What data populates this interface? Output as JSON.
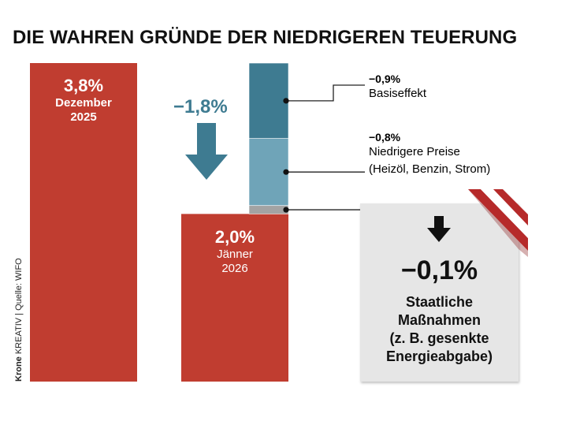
{
  "title": "DIE WAHREN GRÜNDE DER NIEDRIGEREN TEUERUNG",
  "source": {
    "brand": "Krone",
    "brand_suffix": "KREATIV",
    "separator": "|",
    "text": "Quelle: WIFO"
  },
  "colors": {
    "bar_red": "#c03d30",
    "basiseffekt": "#3e7b91",
    "preise": "#6fa4b8",
    "massnahmen": "#a3a3a3",
    "arrow": "#3e7b91",
    "callout_bg": "#e6e6e6"
  },
  "chart_data": {
    "type": "bar",
    "categories": [
      "Dezember 2025",
      "Jänner 2026"
    ],
    "values": [
      3.8,
      2.0
    ],
    "bars": [
      {
        "value_label": "3,8%",
        "line1": "Dezember",
        "line2": "2025"
      },
      {
        "value_label": "2,0%",
        "line1": "Jänner",
        "line2": "2026"
      }
    ],
    "difference": {
      "value": -1.8,
      "label": "−1,8%"
    },
    "components": [
      {
        "value": -0.9,
        "value_label": "−0,9%",
        "label_lines": [
          "Basiseffekt"
        ],
        "color": "#3e7b91"
      },
      {
        "value": -0.8,
        "value_label": "−0,8%",
        "label_lines": [
          "Niedrigere Preise",
          "(Heizöl, Benzin, Strom)"
        ],
        "color": "#6fa4b8"
      },
      {
        "value": -0.1,
        "value_label": "−0,1%",
        "label_lines": [
          "Staatliche",
          "Maßnahmen",
          "(z. B. gesenkte",
          "Energieabgabe)"
        ],
        "color": "#a3a3a3"
      }
    ],
    "ylim": [
      0,
      3.8
    ],
    "xlabel": "",
    "ylabel": ""
  }
}
